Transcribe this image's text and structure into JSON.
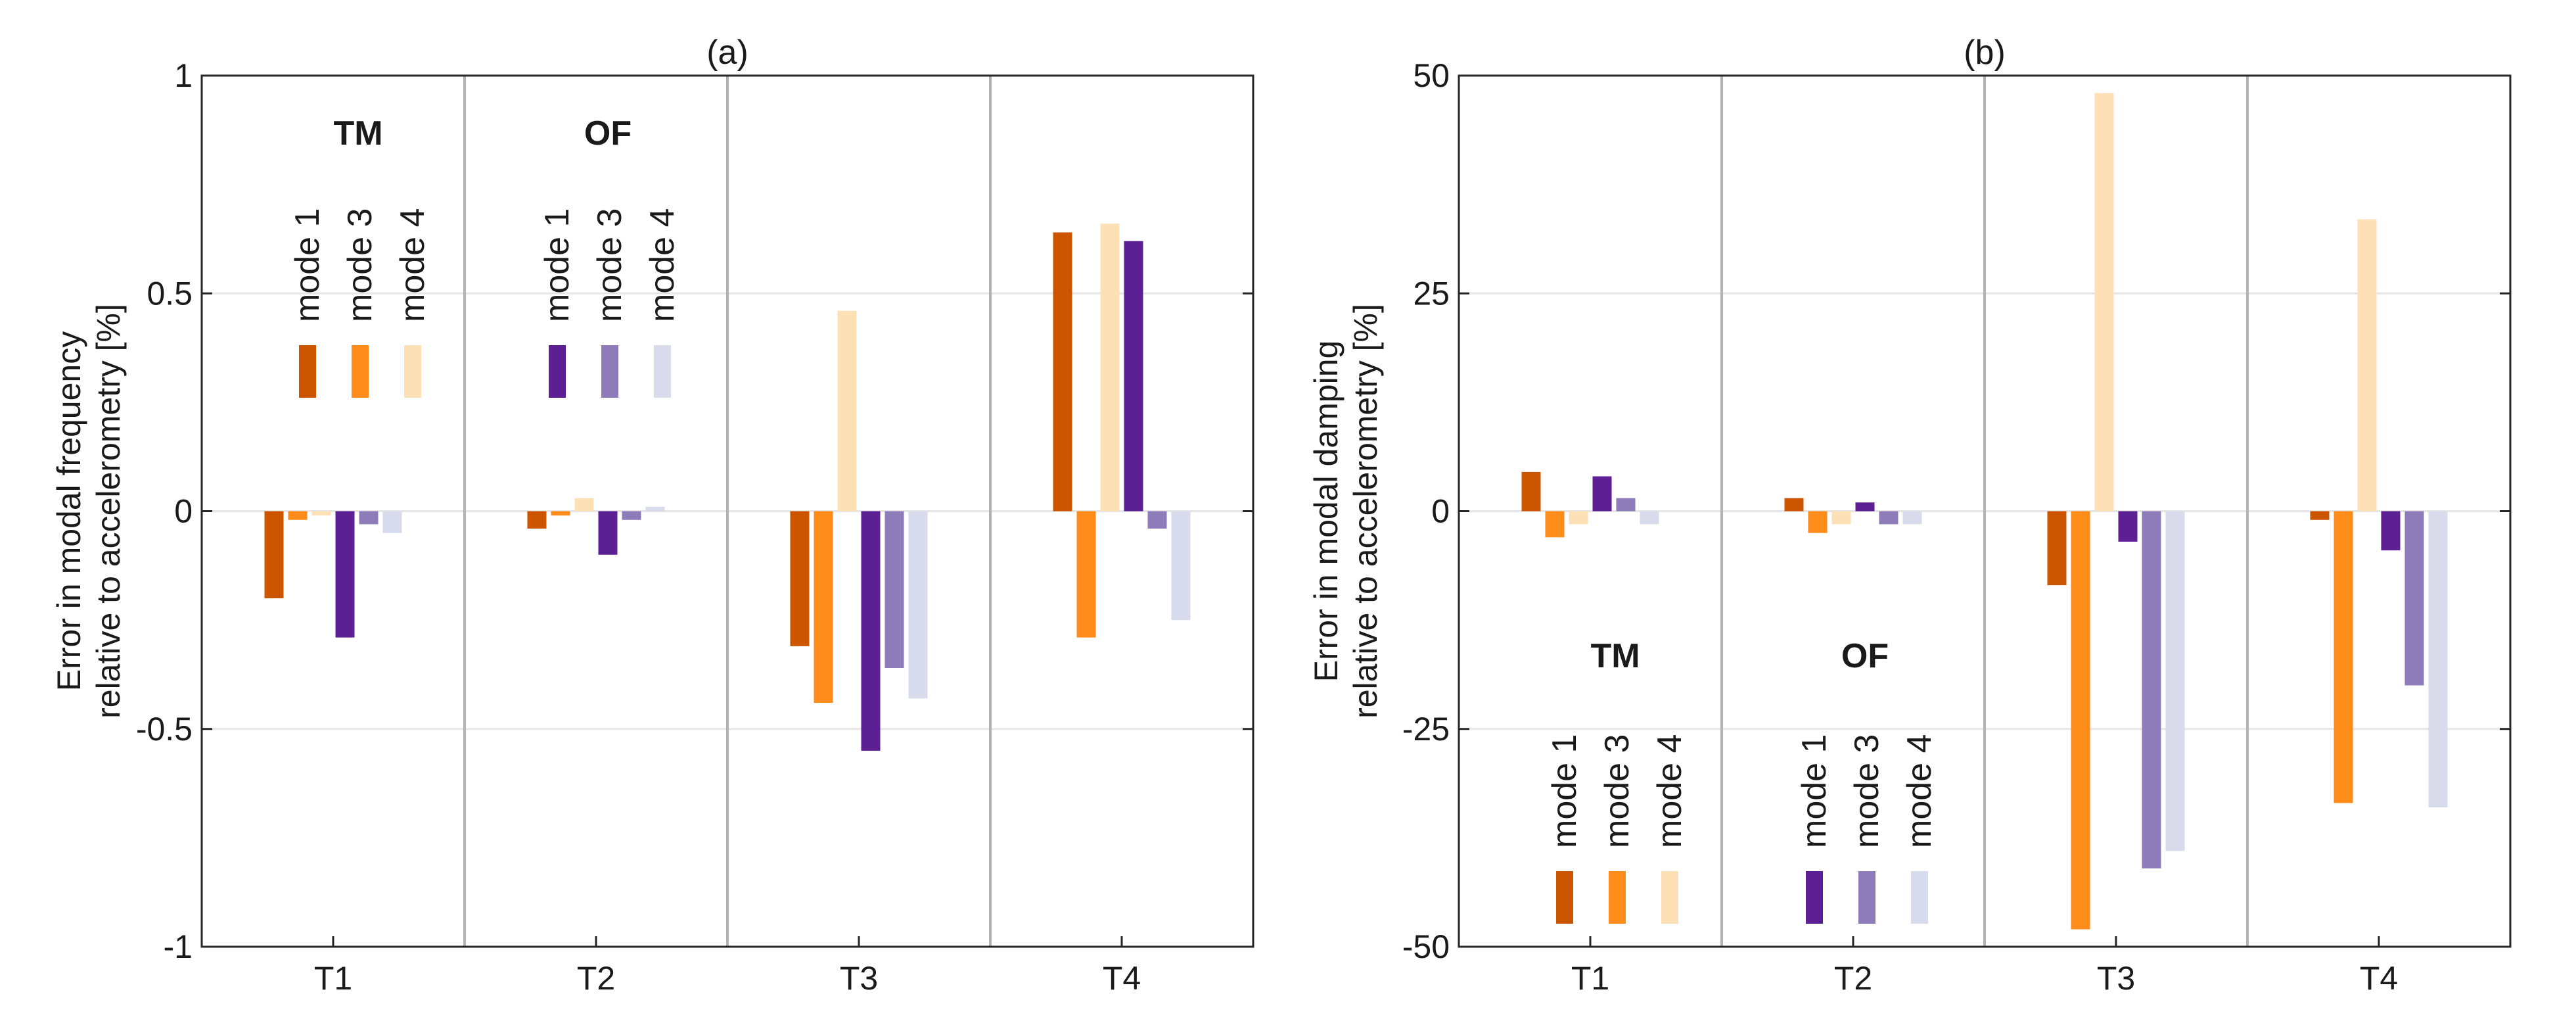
{
  "colors": {
    "tm_mode1": "#cc5500",
    "tm_mode3": "#ff8c1a",
    "tm_mode4": "#fde0b5",
    "of_mode1": "#5c1f94",
    "of_mode3": "#8e7bb9",
    "of_mode4": "#d7dbec"
  },
  "chart_data": [
    {
      "type": "bar",
      "title": "(a)",
      "ylabel_line1": "Error in modal frequency",
      "ylabel_line2": "relative to accelerometry [%]",
      "ylim": [
        -1,
        1
      ],
      "yticks": [
        -1,
        -0.5,
        0,
        0.5,
        1
      ],
      "ytick_labels": [
        "-1",
        "-0.5",
        "0",
        "0.5",
        "1"
      ],
      "categories": [
        "T1",
        "T2",
        "T3",
        "T4"
      ],
      "legend_position": "top-left",
      "legend_groups": [
        {
          "title": "TM",
          "items": [
            "mode 1",
            "mode 3",
            "mode 4"
          ]
        },
        {
          "title": "OF",
          "items": [
            "mode 1",
            "mode 3",
            "mode 4"
          ]
        }
      ],
      "series": [
        {
          "name": "TM mode 1",
          "color_key": "tm_mode1",
          "values": [
            -0.2,
            -0.04,
            -0.31,
            0.64
          ]
        },
        {
          "name": "TM mode 3",
          "color_key": "tm_mode3",
          "values": [
            -0.02,
            -0.01,
            -0.44,
            -0.29
          ]
        },
        {
          "name": "TM mode 4",
          "color_key": "tm_mode4",
          "values": [
            -0.01,
            0.03,
            0.46,
            0.66
          ]
        },
        {
          "name": "OF mode 1",
          "color_key": "of_mode1",
          "values": [
            -0.29,
            -0.1,
            -0.55,
            0.62
          ]
        },
        {
          "name": "OF mode 3",
          "color_key": "of_mode3",
          "values": [
            -0.03,
            -0.02,
            -0.36,
            -0.04
          ]
        },
        {
          "name": "OF mode 4",
          "color_key": "of_mode4",
          "values": [
            -0.05,
            0.01,
            -0.43,
            -0.25
          ]
        }
      ]
    },
    {
      "type": "bar",
      "title": "(b)",
      "ylabel_line1": "Error in modal damping",
      "ylabel_line2": "relative to accelerometry [%]",
      "ylim": [
        -50,
        50
      ],
      "yticks": [
        -50,
        -25,
        0,
        25,
        50
      ],
      "ytick_labels": [
        "-50",
        "-25",
        "0",
        "25",
        "50"
      ],
      "categories": [
        "T1",
        "T2",
        "T3",
        "T4"
      ],
      "legend_position": "bottom-left",
      "legend_groups": [
        {
          "title": "TM",
          "items": [
            "mode 1",
            "mode 3",
            "mode 4"
          ]
        },
        {
          "title": "OF",
          "items": [
            "mode 1",
            "mode 3",
            "mode 4"
          ]
        }
      ],
      "series": [
        {
          "name": "TM mode 1",
          "color_key": "tm_mode1",
          "values": [
            4.5,
            1.5,
            -8.5,
            -1.0
          ]
        },
        {
          "name": "TM mode 3",
          "color_key": "tm_mode3",
          "values": [
            -3.0,
            -2.5,
            -48.0,
            -33.5
          ]
        },
        {
          "name": "TM mode 4",
          "color_key": "tm_mode4",
          "values": [
            -1.5,
            -1.5,
            48.0,
            33.5
          ]
        },
        {
          "name": "OF mode 1",
          "color_key": "of_mode1",
          "values": [
            4.0,
            1.0,
            -3.5,
            -4.5
          ]
        },
        {
          "name": "OF mode 3",
          "color_key": "of_mode3",
          "values": [
            1.5,
            -1.5,
            -41.0,
            -20.0
          ]
        },
        {
          "name": "OF mode 4",
          "color_key": "of_mode4",
          "values": [
            -1.5,
            -1.5,
            -39.0,
            -34.0
          ]
        }
      ]
    }
  ]
}
